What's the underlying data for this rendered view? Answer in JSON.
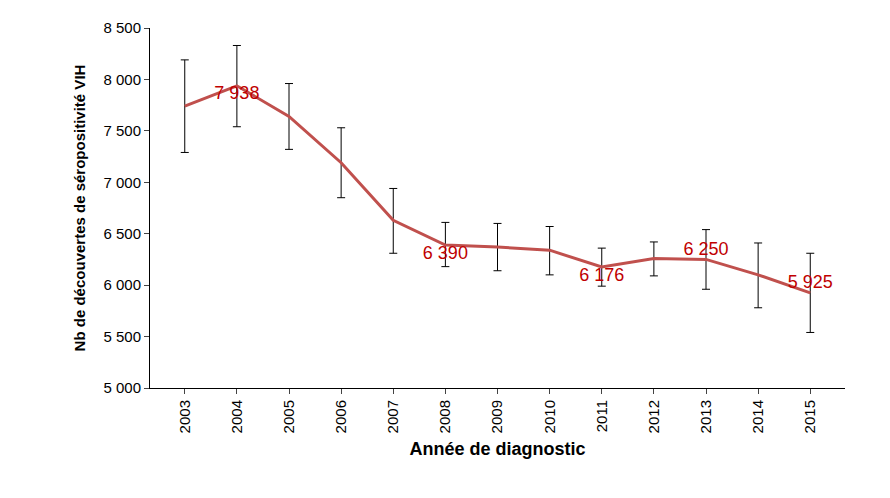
{
  "chart_data": {
    "type": "line",
    "x_label": "Année de diagnostic",
    "y_label": "Nb de découvertes de séropositivité VIH",
    "categories": [
      "2003",
      "2004",
      "2005",
      "2006",
      "2007",
      "2008",
      "2009",
      "2010",
      "2011",
      "2012",
      "2013",
      "2014",
      "2015"
    ],
    "values": [
      7740,
      7938,
      7640,
      7190,
      6630,
      6390,
      6370,
      6340,
      6176,
      6260,
      6250,
      6100,
      5925
    ],
    "value_labels": [
      null,
      "7 938",
      null,
      null,
      null,
      "6 390",
      null,
      null,
      "6 176",
      null,
      "6 250",
      null,
      "5 925"
    ],
    "lower": [
      7290,
      7540,
      7320,
      6850,
      6310,
      6180,
      6140,
      6100,
      5990,
      6090,
      5960,
      5780,
      5540
    ],
    "upper": [
      8190,
      8330,
      7960,
      7530,
      6940,
      6610,
      6600,
      6570,
      6360,
      6420,
      6540,
      6410,
      6310
    ],
    "color": "#c0504d",
    "data_labels": true,
    "grid": false,
    "ylim": [
      5000,
      8500
    ],
    "yticks": [
      {
        "value": 5000,
        "label": "5 000"
      },
      {
        "value": 5500,
        "label": "5 500"
      },
      {
        "value": 6000,
        "label": "6 000"
      },
      {
        "value": 6500,
        "label": "6 500"
      },
      {
        "value": 7000,
        "label": "7 000"
      },
      {
        "value": 7500,
        "label": "7 500"
      },
      {
        "value": 8000,
        "label": "8 000"
      },
      {
        "value": 8500,
        "label": "8 500"
      }
    ]
  }
}
